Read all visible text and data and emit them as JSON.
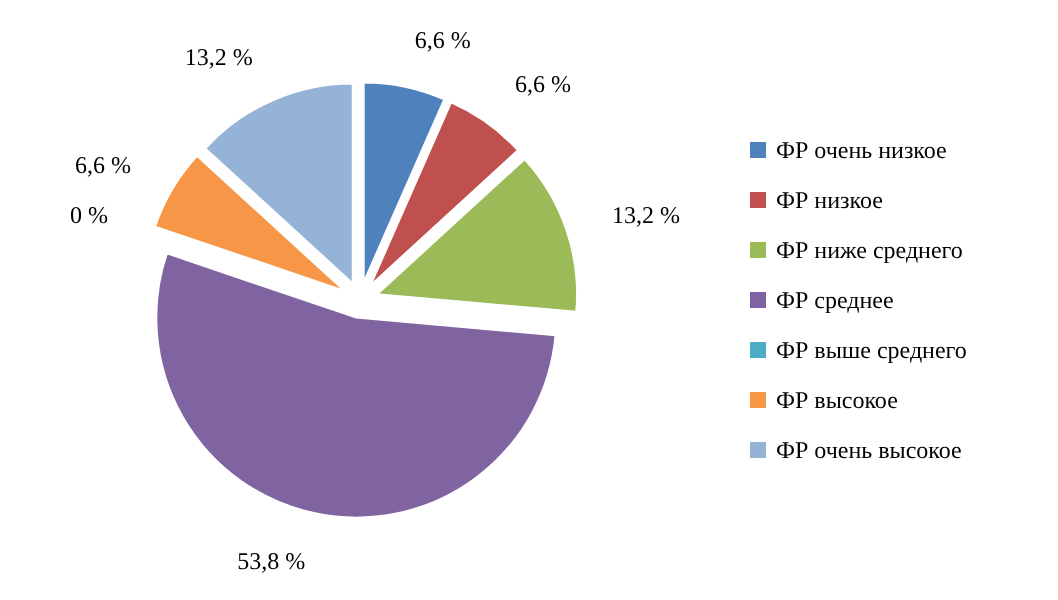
{
  "chart_data": {
    "type": "pie",
    "categories": [
      "ФР очень низкое",
      "ФР низкое",
      "ФР ниже среднего",
      "ФР среднее",
      "ФР выше среднего",
      "ФР высокое",
      "ФР очень высокое"
    ],
    "values": [
      6.6,
      6.6,
      13.2,
      53.8,
      0,
      6.6,
      13.2
    ],
    "colors": [
      "#4f81bd",
      "#c0504d",
      "#9bbb59",
      "#8064a2",
      "#4bacc6",
      "#f79646",
      "#95b3d7"
    ],
    "value_labels": [
      "6,6 %",
      "6,6 %",
      "13,2 %",
      "53,8 %",
      "0 %",
      "6,6 %",
      "13,2 %"
    ],
    "legend": "right"
  }
}
